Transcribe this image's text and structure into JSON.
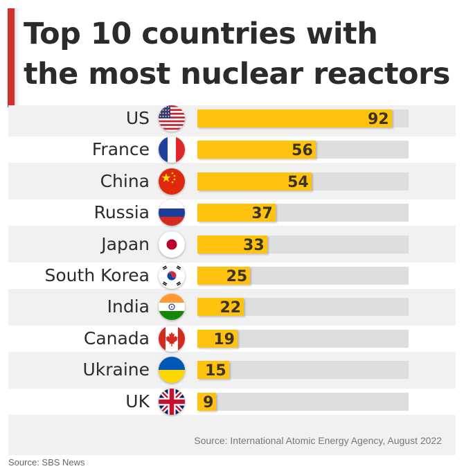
{
  "title_line1": "Top 10 countries with",
  "title_line2": "the most nuclear reactors",
  "source_note": "Source: International Atomic Energy Agency, August 2022",
  "credit": "Source: SBS News",
  "colors": {
    "accent": "#d32f2f",
    "bar": "#ffc20e",
    "track": "#dedede",
    "panel": "#f1f1f1"
  },
  "chart_data": {
    "type": "bar",
    "orientation": "horizontal",
    "categories": [
      "US",
      "France",
      "China",
      "Russia",
      "Japan",
      "South Korea",
      "India",
      "Canada",
      "Ukraine",
      "UK"
    ],
    "values": [
      92,
      56,
      54,
      37,
      33,
      25,
      22,
      19,
      15,
      9
    ],
    "xlim": [
      0,
      100
    ],
    "data_labels": true,
    "flag_icons": [
      "us-flag-icon",
      "france-flag-icon",
      "china-flag-icon",
      "russia-flag-icon",
      "japan-flag-icon",
      "south-korea-flag-icon",
      "india-flag-icon",
      "canada-flag-icon",
      "ukraine-flag-icon",
      "uk-flag-icon"
    ]
  }
}
